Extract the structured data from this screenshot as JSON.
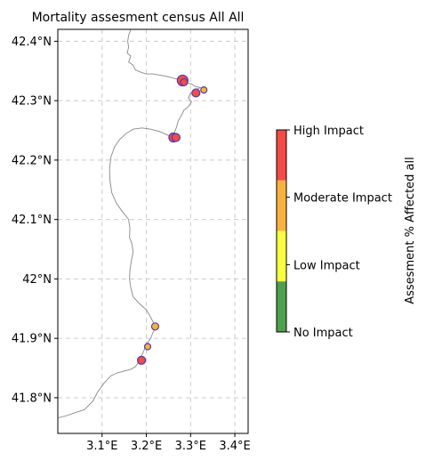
{
  "title": "Mortality assesment census All All",
  "map": {
    "lon_range": [
      3.0,
      3.43
    ],
    "lat_range": [
      41.74,
      42.42
    ],
    "lon_ticks": [
      {
        "value": 3.1,
        "label": "3.1°E"
      },
      {
        "value": 3.2,
        "label": "3.2°E"
      },
      {
        "value": 3.3,
        "label": "3.3°E"
      },
      {
        "value": 3.4,
        "label": "3.4°E"
      }
    ],
    "lat_ticks": [
      {
        "value": 42.4,
        "label": "42.4°N"
      },
      {
        "value": 42.3,
        "label": "42.3°N"
      },
      {
        "value": 42.2,
        "label": "42.2°N"
      },
      {
        "value": 42.1,
        "label": "42.1°N"
      },
      {
        "value": 42.0,
        "label": "42°N"
      },
      {
        "value": 41.9,
        "label": "41.9°N"
      },
      {
        "value": 41.8,
        "label": "41.8°N"
      }
    ],
    "grid": true,
    "coastline": [
      [
        3.165,
        42.42
      ],
      [
        3.16,
        42.41
      ],
      [
        3.158,
        42.4
      ],
      [
        3.16,
        42.39
      ],
      [
        3.157,
        42.38
      ],
      [
        3.165,
        42.375
      ],
      [
        3.16,
        42.365
      ],
      [
        3.17,
        42.36
      ],
      [
        3.175,
        42.352
      ],
      [
        3.19,
        42.347
      ],
      [
        3.2,
        42.345
      ],
      [
        3.215,
        42.345
      ],
      [
        3.23,
        42.343
      ],
      [
        3.245,
        42.341
      ],
      [
        3.26,
        42.338
      ],
      [
        3.272,
        42.336
      ],
      [
        3.28,
        42.332
      ],
      [
        3.29,
        42.33
      ],
      [
        3.302,
        42.328
      ],
      [
        3.31,
        42.324
      ],
      [
        3.322,
        42.322
      ],
      [
        3.312,
        42.318
      ],
      [
        3.3,
        42.313
      ],
      [
        3.295,
        42.305
      ],
      [
        3.302,
        42.298
      ],
      [
        3.295,
        42.29
      ],
      [
        3.285,
        42.284
      ],
      [
        3.28,
        42.276
      ],
      [
        3.272,
        42.266
      ],
      [
        3.268,
        42.255
      ],
      [
        3.262,
        42.244
      ],
      [
        3.255,
        42.24
      ],
      [
        3.245,
        42.243
      ],
      [
        3.23,
        42.248
      ],
      [
        3.21,
        42.252
      ],
      [
        3.19,
        42.254
      ],
      [
        3.17,
        42.252
      ],
      [
        3.155,
        42.245
      ],
      [
        3.14,
        42.235
      ],
      [
        3.128,
        42.222
      ],
      [
        3.12,
        42.205
      ],
      [
        3.117,
        42.185
      ],
      [
        3.118,
        42.165
      ],
      [
        3.122,
        42.145
      ],
      [
        3.132,
        42.128
      ],
      [
        3.145,
        42.114
      ],
      [
        3.16,
        42.1
      ],
      [
        3.163,
        42.085
      ],
      [
        3.162,
        42.07
      ],
      [
        3.168,
        42.058
      ],
      [
        3.17,
        42.045
      ],
      [
        3.166,
        42.03
      ],
      [
        3.163,
        42.015
      ],
      [
        3.162,
        42.0
      ],
      [
        3.165,
        41.985
      ],
      [
        3.17,
        41.97
      ],
      [
        3.185,
        41.958
      ],
      [
        3.2,
        41.948
      ],
      [
        3.208,
        41.938
      ],
      [
        3.215,
        41.928
      ],
      [
        3.222,
        41.92
      ],
      [
        3.215,
        41.91
      ],
      [
        3.21,
        41.9
      ],
      [
        3.2,
        41.89
      ],
      [
        3.195,
        41.88
      ],
      [
        3.19,
        41.872
      ],
      [
        3.185,
        41.862
      ],
      [
        3.175,
        41.852
      ],
      [
        3.165,
        41.848
      ],
      [
        3.15,
        41.845
      ],
      [
        3.135,
        41.842
      ],
      [
        3.12,
        41.837
      ],
      [
        3.105,
        41.825
      ],
      [
        3.09,
        41.81
      ],
      [
        3.08,
        41.795
      ],
      [
        3.06,
        41.78
      ],
      [
        3.04,
        41.775
      ],
      [
        3.02,
        41.77
      ],
      [
        3.0,
        41.766
      ]
    ],
    "sites": [
      {
        "lon": 3.282,
        "lat": 42.334,
        "impact": "High Impact",
        "size": 6
      },
      {
        "lon": 3.285,
        "lat": 42.331,
        "impact": "High Impact",
        "size": 4
      },
      {
        "lon": 3.33,
        "lat": 42.318,
        "impact": "Moderate Impact",
        "size": 3.5
      },
      {
        "lon": 3.312,
        "lat": 42.313,
        "impact": "High Impact",
        "size": 4.5
      },
      {
        "lon": 3.261,
        "lat": 42.238,
        "impact": "High Impact",
        "size": 5
      },
      {
        "lon": 3.267,
        "lat": 42.238,
        "impact": "High Impact",
        "size": 4.5
      },
      {
        "lon": 3.22,
        "lat": 41.92,
        "impact": "Moderate Impact",
        "size": 4
      },
      {
        "lon": 3.203,
        "lat": 41.886,
        "impact": "Moderate Impact",
        "size": 3.5
      },
      {
        "lon": 3.189,
        "lat": 41.863,
        "impact": "High Impact",
        "size": 4.5
      }
    ]
  },
  "colorbar": {
    "label": "Assesment % Affected all",
    "categories": [
      {
        "label": "High Impact",
        "color": "#f44b45"
      },
      {
        "label": "Moderate Impact",
        "color": "#f9b23e"
      },
      {
        "label": "Low Impact",
        "color": "#fdfd40"
      },
      {
        "label": "No Impact",
        "color": "#4ea04a"
      }
    ]
  },
  "colors": {
    "coast": "#888888",
    "grid": "#cccccc",
    "marker_edge": "#4b3cb4"
  }
}
